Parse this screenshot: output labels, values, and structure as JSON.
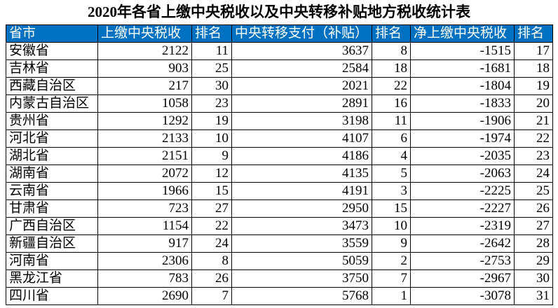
{
  "title": "2020年各省上缴中央税收以及中央转移补贴地方税收统计表",
  "table": {
    "header": [
      "省市",
      "上缴中央税收",
      "排名",
      "中央转移支付（补贴）",
      "排名",
      "净上缴中央税收",
      "排名"
    ],
    "rows": [
      [
        "安徽省",
        2122,
        11,
        3637,
        8,
        -1515,
        17
      ],
      [
        "吉林省",
        903,
        25,
        2584,
        18,
        -1681,
        18
      ],
      [
        "西藏自治区",
        217,
        30,
        2021,
        22,
        -1804,
        19
      ],
      [
        "内蒙古自治区",
        1058,
        23,
        2891,
        16,
        -1833,
        20
      ],
      [
        "贵州省",
        1292,
        19,
        3198,
        11,
        -1906,
        21
      ],
      [
        "河北省",
        2133,
        10,
        4107,
        6,
        -1974,
        22
      ],
      [
        "湖北省",
        2151,
        9,
        4186,
        4,
        -2035,
        23
      ],
      [
        "湖南省",
        2072,
        12,
        4135,
        5,
        -2063,
        24
      ],
      [
        "云南省",
        1966,
        15,
        4191,
        3,
        -2225,
        25
      ],
      [
        "甘肃省",
        723,
        27,
        2950,
        15,
        -2227,
        26
      ],
      [
        "广西自治区",
        1154,
        22,
        3473,
        10,
        -2319,
        27
      ],
      [
        "新疆自治区",
        917,
        24,
        3559,
        9,
        -2642,
        28
      ],
      [
        "河南省",
        2306,
        8,
        5059,
        2,
        -2753,
        29
      ],
      [
        "黑龙江省",
        783,
        26,
        3750,
        7,
        -2967,
        30
      ],
      [
        "四川省",
        2690,
        7,
        5768,
        1,
        -3078,
        31
      ]
    ]
  }
}
